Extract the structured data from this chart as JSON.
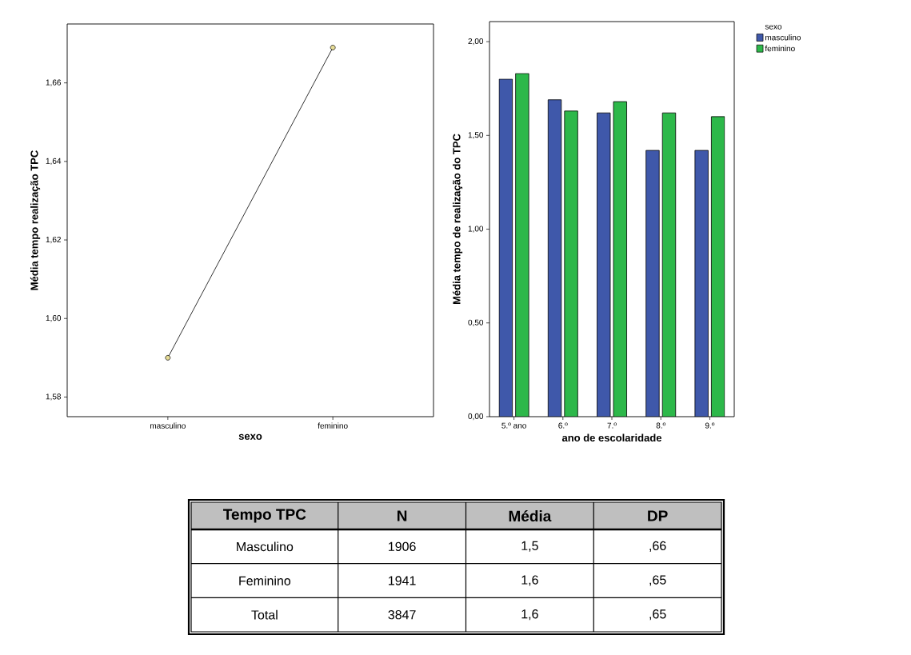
{
  "chart_data": [
    {
      "type": "line",
      "xlabel": "sexo",
      "ylabel": "Média tempo realização TPC",
      "categories": [
        "masculino",
        "feminino"
      ],
      "values": [
        1.59,
        1.669
      ],
      "color": "#000000",
      "marker": "circle",
      "ylim": [
        1.575,
        1.675
      ],
      "yticks": [
        {
          "value": 1.58,
          "label": "1,58"
        },
        {
          "value": 1.6,
          "label": "1,60"
        },
        {
          "value": 1.62,
          "label": "1,62"
        },
        {
          "value": 1.64,
          "label": "1,64"
        },
        {
          "value": 1.66,
          "label": "1,66"
        }
      ]
    },
    {
      "type": "bar",
      "xlabel": "ano de escolaridade",
      "ylabel": "Média tempo de realização do TPC",
      "legend_title": "sexo",
      "legend": "top right",
      "categories": [
        "5.º ano",
        "6.º",
        "7.º",
        "8.º",
        "9.º"
      ],
      "series": [
        {
          "name": "masculino",
          "color": "#3f58aa",
          "values": [
            1.8,
            1.69,
            1.62,
            1.42,
            1.42
          ]
        },
        {
          "name": "feminino",
          "color": "#2db84a",
          "values": [
            1.83,
            1.63,
            1.68,
            1.62,
            1.6
          ]
        }
      ],
      "ylim": [
        0,
        2.107
      ],
      "yticks": [
        {
          "value": 0,
          "label": "0,00"
        },
        {
          "value": 0.5,
          "label": "0,50"
        },
        {
          "value": 1,
          "label": "1,00"
        },
        {
          "value": 1.5,
          "label": "1,50"
        },
        {
          "value": 2,
          "label": "2,00"
        }
      ]
    },
    {
      "type": "other",
      "categories": [
        "Tempo  TPC",
        "N",
        "Média",
        "DP"
      ],
      "annotations": [
        "Masculino",
        "1906",
        "1,5",
        ",66",
        "Feminino",
        "1941",
        "1,6",
        ",65",
        "Total",
        "3847",
        "1,6",
        ",65"
      ]
    }
  ]
}
